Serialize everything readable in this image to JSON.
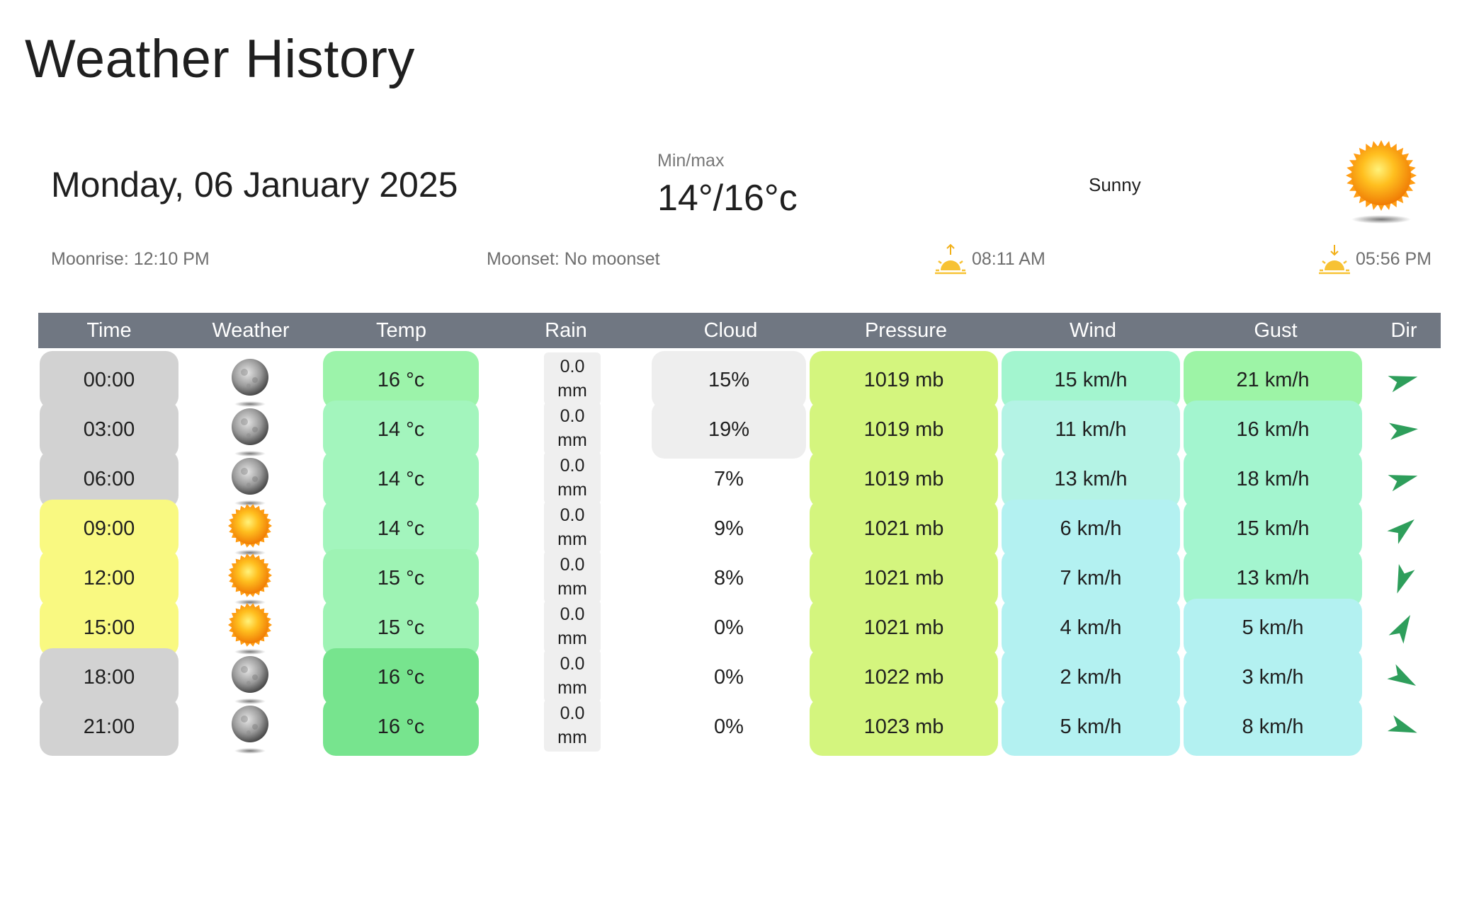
{
  "page": {
    "title": "Weather History"
  },
  "summary": {
    "date": "Monday, 06 January 2025",
    "minmax_label": "Min/max",
    "minmax_value": "14°/16°c",
    "condition": "Sunny",
    "condition_icon": "sun-icon",
    "moonrise": "Moonrise: 12:10 PM",
    "moonset": "Moonset: No moonset",
    "sunrise": "08:11 AM",
    "sunset": "05:56 PM"
  },
  "colors": {
    "header": "#707782",
    "night_time": "#d2d2d2",
    "day_time": "#f9f981",
    "cloud_gray": "#eeeeee",
    "pressure": "#d4f57e",
    "arrow": "#2e9e5b"
  },
  "table": {
    "headers": [
      "Time",
      "Weather",
      "Temp",
      "Rain",
      "Cloud",
      "Pressure",
      "Wind",
      "Gust",
      "Dir"
    ],
    "rows": [
      {
        "time": "00:00",
        "is_day": false,
        "icon": "moon-icon",
        "temp": "16 °c",
        "temp_color": "#9cf3aa",
        "rain_value": "0.0",
        "rain_unit": "mm",
        "cloud": "15%",
        "cloud_bg": "#eeeeee",
        "pressure": "1019 mb",
        "wind": "15 km/h",
        "wind_color": "#a3f5cf",
        "gust": "21 km/h",
        "gust_color": "#9df4a6",
        "dir_deg": 75
      },
      {
        "time": "03:00",
        "is_day": false,
        "icon": "moon-icon",
        "temp": "14 °c",
        "temp_color": "#a3f5bd",
        "rain_value": "0.0",
        "rain_unit": "mm",
        "cloud": "19%",
        "cloud_bg": "#eeeeee",
        "pressure": "1019 mb",
        "wind": "11 km/h",
        "wind_color": "#b4f3e5",
        "gust": "16 km/h",
        "gust_color": "#a3f5cf",
        "dir_deg": 85
      },
      {
        "time": "06:00",
        "is_day": false,
        "icon": "moon-icon",
        "temp": "14 °c",
        "temp_color": "#a3f5bd",
        "rain_value": "0.0",
        "rain_unit": "mm",
        "cloud": "7%",
        "cloud_bg": "",
        "pressure": "1019 mb",
        "wind": "13 km/h",
        "wind_color": "#b4f3e5",
        "gust": "18 km/h",
        "gust_color": "#a3f5cf",
        "dir_deg": 75
      },
      {
        "time": "09:00",
        "is_day": true,
        "icon": "sun-icon",
        "temp": "14 °c",
        "temp_color": "#a3f5bd",
        "rain_value": "0.0",
        "rain_unit": "mm",
        "cloud": "9%",
        "cloud_bg": "",
        "pressure": "1021 mb",
        "wind": "6 km/h",
        "wind_color": "#b3f1f1",
        "gust": "15 km/h",
        "gust_color": "#a3f5cf",
        "dir_deg": 50
      },
      {
        "time": "12:00",
        "is_day": true,
        "icon": "sun-icon",
        "temp": "15 °c",
        "temp_color": "#9ef3b4",
        "rain_value": "0.0",
        "rain_unit": "mm",
        "cloud": "8%",
        "cloud_bg": "",
        "pressure": "1021 mb",
        "wind": "7 km/h",
        "wind_color": "#b3f1f1",
        "gust": "13 km/h",
        "gust_color": "#a3f5cf",
        "dir_deg": 200
      },
      {
        "time": "15:00",
        "is_day": true,
        "icon": "sun-icon",
        "temp": "15 °c",
        "temp_color": "#9ef3b4",
        "rain_value": "0.0",
        "rain_unit": "mm",
        "cloud": "0%",
        "cloud_bg": "",
        "pressure": "1021 mb",
        "wind": "4 km/h",
        "wind_color": "#b3f1f1",
        "gust": "5 km/h",
        "gust_color": "#b3f1f1",
        "dir_deg": 30
      },
      {
        "time": "18:00",
        "is_day": false,
        "icon": "moon-icon",
        "temp": "16 °c",
        "temp_color": "#77e48e",
        "rain_value": "0.0",
        "rain_unit": "mm",
        "cloud": "0%",
        "cloud_bg": "",
        "pressure": "1022 mb",
        "wind": "2 km/h",
        "wind_color": "#b3f1f1",
        "gust": "3 km/h",
        "gust_color": "#b3f1f1",
        "dir_deg": 120
      },
      {
        "time": "21:00",
        "is_day": false,
        "icon": "moon-icon",
        "temp": "16 °c",
        "temp_color": "#77e48e",
        "rain_value": "0.0",
        "rain_unit": "mm",
        "cloud": "0%",
        "cloud_bg": "",
        "pressure": "1023 mb",
        "wind": "5 km/h",
        "wind_color": "#b3f1f1",
        "gust": "8 km/h",
        "gust_color": "#b3f1f1",
        "dir_deg": 110
      }
    ]
  }
}
